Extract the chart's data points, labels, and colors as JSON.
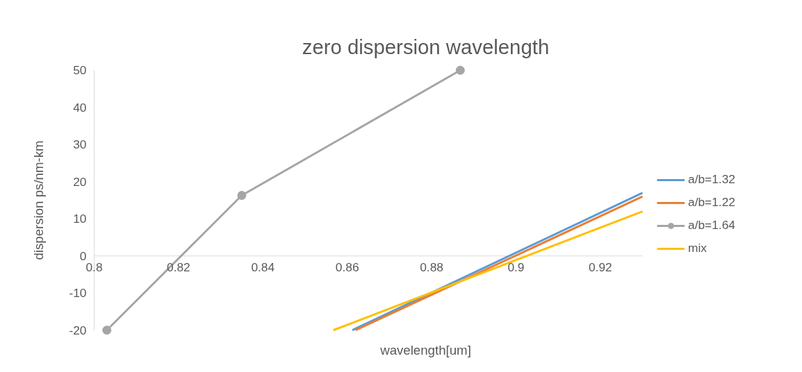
{
  "chart_data": {
    "type": "line",
    "title": "zero dispersion wavelength",
    "xlabel": "wavelength[um]",
    "ylabel": "dispersion ps/nm-km",
    "xlim": [
      0.8,
      0.93
    ],
    "xticks": [
      0.8,
      0.82,
      0.84,
      0.86,
      0.88,
      0.9,
      0.92
    ],
    "ylim": [
      -20,
      50
    ],
    "yticks": [
      -20,
      -10,
      0,
      10,
      20,
      30,
      40,
      50
    ],
    "grid": false,
    "legend": "right",
    "series": [
      {
        "name": "a/b=1.32",
        "color": "#5b9bd5",
        "x": [
          0.8612,
          0.93
        ],
        "values": [
          -20,
          17
        ]
      },
      {
        "name": "a/b=1.22",
        "color": "#ed7d31",
        "x": [
          0.862,
          0.93
        ],
        "values": [
          -20,
          16
        ]
      },
      {
        "name": "a/b=1.64",
        "color": "#a5a5a5",
        "marker": "circle",
        "x": [
          0.803,
          0.835,
          0.8868
        ],
        "values": [
          -20,
          16.3,
          50
        ]
      },
      {
        "name": "mix",
        "color": "#ffc000",
        "x": [
          0.8567,
          0.93
        ],
        "values": [
          -20,
          12
        ]
      }
    ]
  }
}
